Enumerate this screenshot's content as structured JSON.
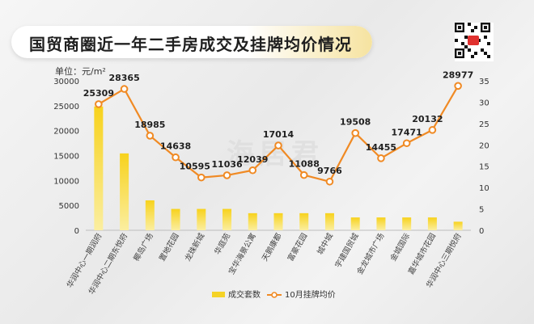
{
  "title": "国贸商圈近一年二手房成交及挂牌均价情况",
  "unit_label": "单位：元/m²",
  "chart_data": {
    "type": "bar",
    "categories": [
      "华润中心一期润府",
      "华润中心二期东悦府",
      "椰岛广场",
      "置地花园",
      "龙珠新城",
      "华庭苑",
      "宝华海景公寓",
      "天鹅康都",
      "富豪花园",
      "城中城",
      "宇建国贸城",
      "金龙城市广场",
      "金城国际",
      "嘉华城市花园",
      "华润中心三期悦府"
    ],
    "series": [
      {
        "name": "成交套数",
        "type": "bar",
        "axis": "right",
        "color": "#f5d327",
        "values": [
          29,
          18,
          7,
          5,
          5,
          5,
          4,
          4,
          4,
          4,
          3,
          3,
          3,
          3,
          2
        ]
      },
      {
        "name": "10月挂牌均价",
        "type": "line",
        "axis": "left",
        "color": "#f08a24",
        "values": [
          25309,
          28365,
          18985,
          14638,
          10595,
          11036,
          12039,
          17014,
          11088,
          9766,
          19508,
          14455,
          17471,
          20132,
          28977
        ],
        "labels": [
          "25309",
          "28365",
          "18985",
          "14638",
          "10595",
          "11036",
          "12039",
          "17014",
          "11088",
          "9766",
          "19508",
          "14455",
          "17471",
          "20132",
          "28977"
        ]
      }
    ],
    "y_left": {
      "min": 0,
      "max": 30000,
      "ticks": [
        "0",
        "5000",
        "10000",
        "15000",
        "20000",
        "25000",
        "30000"
      ],
      "values": [
        0,
        5000,
        10000,
        15000,
        20000,
        25000,
        30000
      ]
    },
    "y_right": {
      "min": 0,
      "max": 35,
      "ticks": [
        "0",
        "5",
        "10",
        "15",
        "20",
        "25",
        "30",
        "35"
      ],
      "values": [
        0,
        5,
        10,
        15,
        20,
        25,
        30,
        35
      ]
    },
    "grid": false,
    "legend_position": "bottom-center"
  },
  "watermark": "海居君"
}
